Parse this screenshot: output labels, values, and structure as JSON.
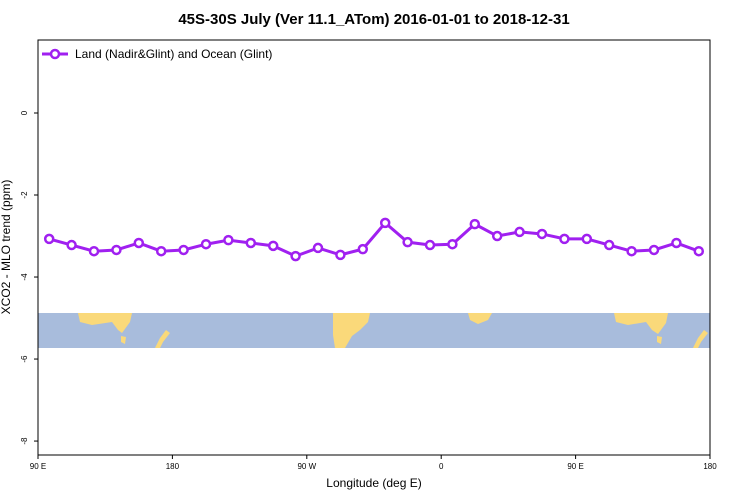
{
  "chart_data": {
    "type": "line",
    "title": "45S-30S July (Ver 11.1_ATom)   2016-01-01 to 2018-12-31",
    "x_label": "Longitude (deg E)",
    "y_label": "XCO2 - MLO trend (ppm)",
    "x": [
      97.5,
      112.5,
      127.5,
      142.5,
      157.5,
      172.5,
      187.5,
      202.5,
      217.5,
      232.5,
      247.5,
      262.5,
      277.5,
      292.5,
      307.5,
      322.5,
      337.5,
      352.5,
      367.5,
      382.5,
      397.5,
      412.5,
      427.5,
      442.5,
      457.5,
      472.5,
      487.5,
      502.5,
      517.5,
      532.5
    ],
    "series": [
      {
        "name": "Land (Nadir&Glint) and Ocean (Glint)",
        "color": "#a020f0",
        "values": [
          -3.07,
          -3.22,
          -3.37,
          -3.34,
          -3.17,
          -3.37,
          -3.34,
          -3.2,
          -3.1,
          -3.17,
          -3.24,
          -3.49,
          -3.29,
          -3.46,
          -3.32,
          -2.68,
          -3.15,
          -3.22,
          -3.2,
          -2.71,
          -3.0,
          -2.9,
          -2.95,
          -3.07,
          -3.07,
          -3.22,
          -3.37,
          -3.34,
          -3.17,
          -3.37
        ]
      }
    ],
    "xlim": [
      90,
      540
    ],
    "xticks": [
      {
        "value": 90,
        "label": "90 E"
      },
      {
        "value": 180,
        "label": "180"
      },
      {
        "value": 270,
        "label": "90 W"
      },
      {
        "value": 360,
        "label": "0"
      },
      {
        "value": 450,
        "label": "90 E"
      },
      {
        "value": 540,
        "label": "180"
      }
    ],
    "ylim": [
      -8.34,
      1.78
    ],
    "yticks": [
      0,
      -2,
      -4,
      -6,
      -8
    ],
    "legend": "top-left"
  }
}
